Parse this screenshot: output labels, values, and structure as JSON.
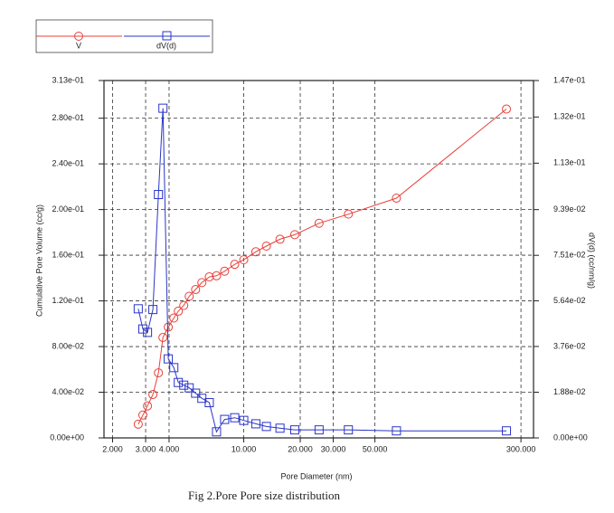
{
  "chart_data": {
    "type": "line",
    "caption": "Fig 2.Pore Pore size distribution",
    "xlabel": "Pore Diameter (nm)",
    "ylabel": "Cumulative Pore Volume (cc/g)",
    "y2label": "dV(d) (cc/nm/g)",
    "xscale": "log",
    "grid": true,
    "legend": "top-left",
    "xlim": [
      1.8,
      350
    ],
    "xticks": [
      {
        "value": 2,
        "label": "2.000"
      },
      {
        "value": 3,
        "label": "3.000"
      },
      {
        "value": 4,
        "label": "4.000"
      },
      {
        "value": 10,
        "label": "10.000"
      },
      {
        "value": 20,
        "label": "20.000"
      },
      {
        "value": 30,
        "label": "30.000"
      },
      {
        "value": 50,
        "label": "50.000"
      },
      {
        "value": 300,
        "label": "300.000"
      }
    ],
    "ylim": [
      0,
      0.313
    ],
    "yticks": [
      {
        "value": 0,
        "label": "0.00e+00"
      },
      {
        "value": 0.04,
        "label": "4.00e-02"
      },
      {
        "value": 0.08,
        "label": "8.00e-02"
      },
      {
        "value": 0.12,
        "label": "1.20e-01"
      },
      {
        "value": 0.16,
        "label": "1.60e-01"
      },
      {
        "value": 0.2,
        "label": "2.00e-01"
      },
      {
        "value": 0.24,
        "label": "2.40e-01"
      },
      {
        "value": 0.28,
        "label": "2.80e-01"
      },
      {
        "value": 0.313,
        "label": "3.13e-01"
      }
    ],
    "y2lim": [
      0,
      0.147
    ],
    "y2ticks": [
      {
        "value": 0,
        "label": "0.00e+00"
      },
      {
        "value": 0.0188,
        "label": "1.88e-02"
      },
      {
        "value": 0.0376,
        "label": "3.76e-02"
      },
      {
        "value": 0.0564,
        "label": "5.64e-02"
      },
      {
        "value": 0.0751,
        "label": "7.51e-02"
      },
      {
        "value": 0.0939,
        "label": "9.39e-02"
      },
      {
        "value": 0.113,
        "label": "1.13e-01"
      },
      {
        "value": 0.132,
        "label": "1.32e-01"
      },
      {
        "value": 0.147,
        "label": "1.47e-01"
      }
    ],
    "x": [
      2.74,
      2.9,
      3.07,
      3.28,
      3.51,
      3.71,
      3.96,
      4.24,
      4.48,
      4.79,
      5.12,
      5.54,
      5.98,
      6.55,
      7.16,
      7.91,
      8.95,
      10,
      11.6,
      13.2,
      15.6,
      18.7,
      25.2,
      36.1,
      65.1,
      251
    ],
    "series": [
      {
        "name": "V",
        "color": "#e8403a",
        "marker": "circle",
        "axis": "y",
        "values": [
          0.012,
          0.02,
          0.028,
          0.038,
          0.057,
          0.088,
          0.097,
          0.105,
          0.111,
          0.116,
          0.124,
          0.13,
          0.136,
          0.141,
          0.142,
          0.146,
          0.152,
          0.156,
          0.163,
          0.168,
          0.174,
          0.178,
          0.188,
          0.196,
          0.21,
          0.288
        ]
      },
      {
        "name": "dV(d)",
        "color": "#2a35c8",
        "marker": "square",
        "axis": "y2",
        "values": [
          0.0531,
          0.0448,
          0.0434,
          0.0528,
          0.1001,
          0.1356,
          0.0325,
          0.0289,
          0.0228,
          0.0217,
          0.0206,
          0.0184,
          0.0163,
          0.0145,
          0.0025,
          0.0076,
          0.0083,
          0.0072,
          0.0058,
          0.0047,
          0.004,
          0.0033,
          0.0033,
          0.0033,
          0.0029,
          0.0029
        ]
      }
    ]
  }
}
